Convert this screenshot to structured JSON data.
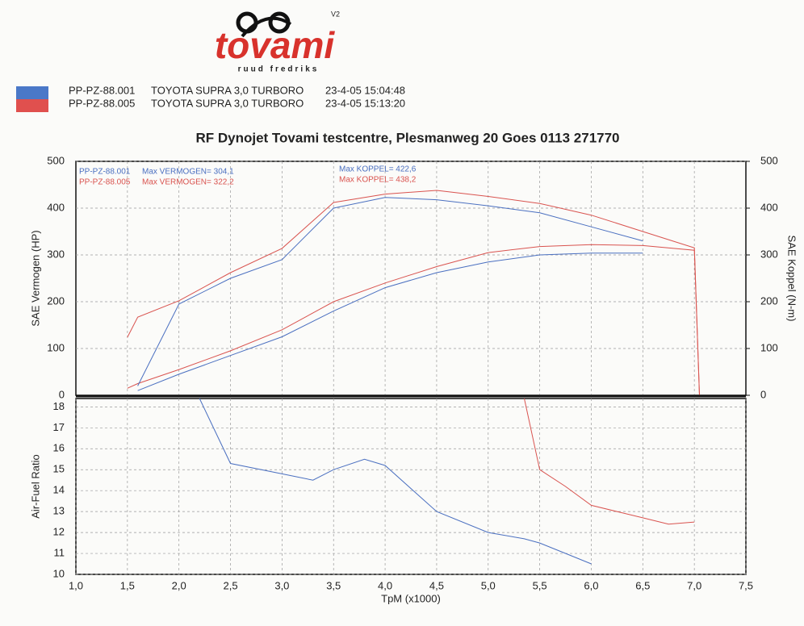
{
  "header": {
    "logo": "tovami",
    "logo_sub": "ruud fredriks",
    "version": "V2",
    "runs": [
      {
        "id": "PP-PZ-88.001",
        "car": "TOYOTA SUPRA 3,0 TURBORO",
        "date": "23-4-05 15:04:48",
        "color": "#4a78c8"
      },
      {
        "id": "PP-PZ-88.005",
        "car": "TOYOTA SUPRA 3,0 TURBORO",
        "date": "23-4-05 15:13:20",
        "color": "#e0504e"
      }
    ],
    "title": "RF Dynojet Tovami testcentre, Plesmanweg 20 Goes 0113 271770"
  },
  "chart_data": [
    {
      "type": "line",
      "ylabel": "SAE Vermogen (HP)",
      "y2label": "SAE Koppel (N-m)",
      "x": [
        1.5,
        1.6,
        2.0,
        2.5,
        3.0,
        3.5,
        4.0,
        4.5,
        5.0,
        5.5,
        6.0,
        6.5,
        7.0,
        7.05
      ],
      "xlim": [
        1.0,
        7.5
      ],
      "xticks": [
        1.5,
        2.0,
        2.5,
        3.0,
        3.5,
        4.0,
        4.5,
        5.0,
        5.5,
        6.0,
        6.5,
        7.0
      ],
      "ylim": [
        0,
        500
      ],
      "yticks": [
        0,
        100,
        200,
        300,
        400,
        500
      ],
      "y2lim": [
        0,
        500
      ],
      "y2ticks": [
        0,
        100,
        200,
        300,
        400,
        500
      ],
      "grid": true,
      "series": [
        {
          "name": "PP-PZ-88.001",
          "note": "Max VERMOGEN= 304,1",
          "color": "#4a6fc0",
          "values": [
            null,
            10,
            45,
            85,
            125,
            180,
            230,
            262,
            285,
            300,
            304,
            304,
            null,
            null
          ]
        },
        {
          "name": "PP-PZ-88.005",
          "note": "Max VERMOGEN= 322,2",
          "color": "#d9534f",
          "values": [
            15,
            25,
            55,
            95,
            140,
            200,
            240,
            275,
            305,
            318,
            322,
            320,
            310,
            0
          ]
        },
        {
          "name": "Max KOPPEL= 422,6",
          "color": "#4a6fc0",
          "axis": "y2",
          "values": [
            null,
            20,
            195,
            250,
            290,
            400,
            423,
            418,
            405,
            390,
            360,
            330,
            null,
            null
          ]
        },
        {
          "name": "Max KOPPEL= 438,2",
          "color": "#d9534f",
          "axis": "y2",
          "values": [
            124,
            167,
            202,
            262,
            314,
            412,
            430,
            438,
            425,
            410,
            385,
            350,
            315,
            0
          ]
        }
      ]
    },
    {
      "type": "line",
      "ylabel": "Air-Fuel Ratio",
      "xlabel": "TpM (x1000)",
      "x": [
        2.2,
        2.5,
        3.0,
        3.3,
        3.5,
        3.8,
        4.0,
        4.5,
        5.0,
        5.35,
        5.5,
        5.75,
        6.0,
        6.5,
        6.75,
        7.0
      ],
      "xlim": [
        1.0,
        7.5
      ],
      "xticks": [
        {
          "value": 1.0,
          "label": "1,0"
        },
        {
          "value": 1.5,
          "label": "1,5"
        },
        {
          "value": 2.0,
          "label": "2,0"
        },
        {
          "value": 2.5,
          "label": "2,5"
        },
        {
          "value": 3.0,
          "label": "3,0"
        },
        {
          "value": 3.5,
          "label": "3,5"
        },
        {
          "value": 4.0,
          "label": "4,0"
        },
        {
          "value": 4.5,
          "label": "4,5"
        },
        {
          "value": 5.0,
          "label": "5,0"
        },
        {
          "value": 5.5,
          "label": "5,5"
        },
        {
          "value": 6.0,
          "label": "6,0"
        },
        {
          "value": 6.5,
          "label": "6,5"
        },
        {
          "value": 7.0,
          "label": "7,0"
        },
        {
          "value": 7.5,
          "label": "7,5"
        }
      ],
      "ylim": [
        10,
        18.4
      ],
      "yticks": [
        10,
        11,
        12,
        13,
        14,
        15,
        16,
        17,
        18
      ],
      "grid": true,
      "series": [
        {
          "color": "#4a6fc0",
          "values": [
            18.4,
            15.3,
            14.8,
            14.5,
            15.0,
            15.5,
            15.2,
            13.0,
            12.0,
            11.7,
            11.5,
            11.0,
            10.5,
            null,
            null,
            null
          ]
        },
        {
          "color": "#d9534f",
          "values": [
            null,
            null,
            null,
            null,
            null,
            null,
            null,
            null,
            null,
            18.4,
            15.0,
            14.2,
            13.3,
            12.7,
            12.4,
            12.5
          ]
        }
      ]
    }
  ]
}
